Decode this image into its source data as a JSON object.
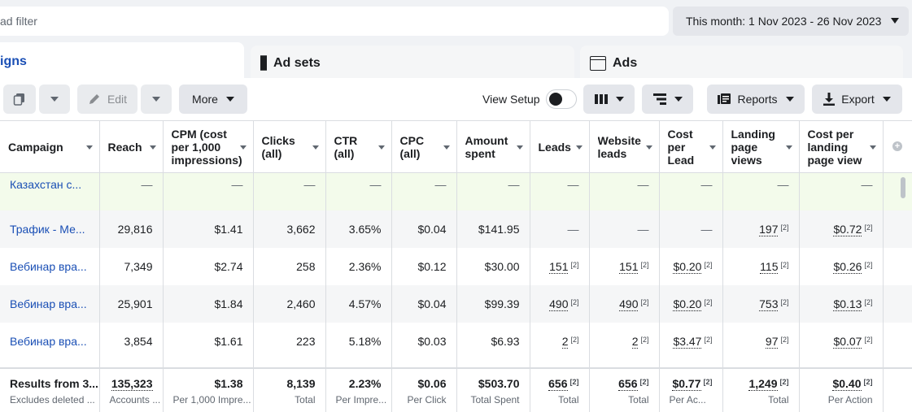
{
  "filter": {
    "placeholder": "ad filter"
  },
  "date_range": {
    "label": "This month: 1 Nov 2023 - 26 Nov 2023"
  },
  "tabs": [
    {
      "label": "igns"
    },
    {
      "label": "Ad sets"
    },
    {
      "label": "Ads"
    }
  ],
  "toolbar": {
    "edit_label": "Edit",
    "more_label": "More",
    "view_setup_label": "View Setup",
    "reports_label": "Reports",
    "export_label": "Export"
  },
  "columns": [
    "Campaign",
    "Reach",
    "CPM (cost per 1,000 impressions)",
    "Clicks (all)",
    "CTR (all)",
    "CPC (all)",
    "Amount spent",
    "Leads",
    "Website leads",
    "Cost per Lead",
    "Landing page views",
    "Cost per landing page view"
  ],
  "rows": [
    {
      "name": "Казахстан с...",
      "reach": "—",
      "cpm": "—",
      "clicks": "—",
      "ctr": "—",
      "cpc": "—",
      "spent": "—",
      "leads": "—",
      "web_leads": "—",
      "cpl": "—",
      "lpv": "—",
      "cost_lpv": "—"
    },
    {
      "name": "Трафик - Ме...",
      "reach": "29,816",
      "cpm": "$1.41",
      "clicks": "3,662",
      "ctr": "3.65%",
      "cpc": "$0.04",
      "spent": "$141.95",
      "leads": "—",
      "web_leads": "—",
      "cpl": "—",
      "lpv": "197",
      "cost_lpv": "$0.72"
    },
    {
      "name": "Вебинар вра...",
      "reach": "7,349",
      "cpm": "$2.74",
      "clicks": "258",
      "ctr": "2.36%",
      "cpc": "$0.12",
      "spent": "$30.00",
      "leads": "151",
      "web_leads": "151",
      "cpl": "$0.20",
      "lpv": "115",
      "cost_lpv": "$0.26"
    },
    {
      "name": "Вебинар вра...",
      "reach": "25,901",
      "cpm": "$1.84",
      "clicks": "2,460",
      "ctr": "4.57%",
      "cpc": "$0.04",
      "spent": "$99.39",
      "leads": "490",
      "web_leads": "490",
      "cpl": "$0.20",
      "lpv": "753",
      "cost_lpv": "$0.13"
    },
    {
      "name": "Вебинар вра...",
      "reach": "3,854",
      "cpm": "$1.61",
      "clicks": "223",
      "ctr": "5.18%",
      "cpc": "$0.03",
      "spent": "$6.93",
      "leads": "2",
      "web_leads": "2",
      "cpl": "$3.47",
      "lpv": "97",
      "cost_lpv": "$0.07"
    }
  ],
  "footnote": "[2]",
  "totals": {
    "name": "Results from 3...",
    "name_sub": "Excludes deleted ...",
    "reach": "135,323",
    "reach_sub": "Accounts ...",
    "cpm": "$1.38",
    "cpm_sub": "Per 1,000 Impre...",
    "clicks": "8,139",
    "clicks_sub": "Total",
    "ctr": "2.23%",
    "ctr_sub": "Per Impre...",
    "cpc": "$0.06",
    "cpc_sub": "Per Click",
    "spent": "$503.70",
    "spent_sub": "Total Spent",
    "leads": "656",
    "leads_sub": "Total",
    "web_leads": "656",
    "web_leads_sub": "Total",
    "cpl": "$0.77",
    "cpl_sub": "Per Ac...",
    "lpv": "1,249",
    "lpv_sub": "Total",
    "cost_lpv": "$0.40",
    "cost_lpv_sub": "Per Action"
  },
  "add_column_icon": "+"
}
